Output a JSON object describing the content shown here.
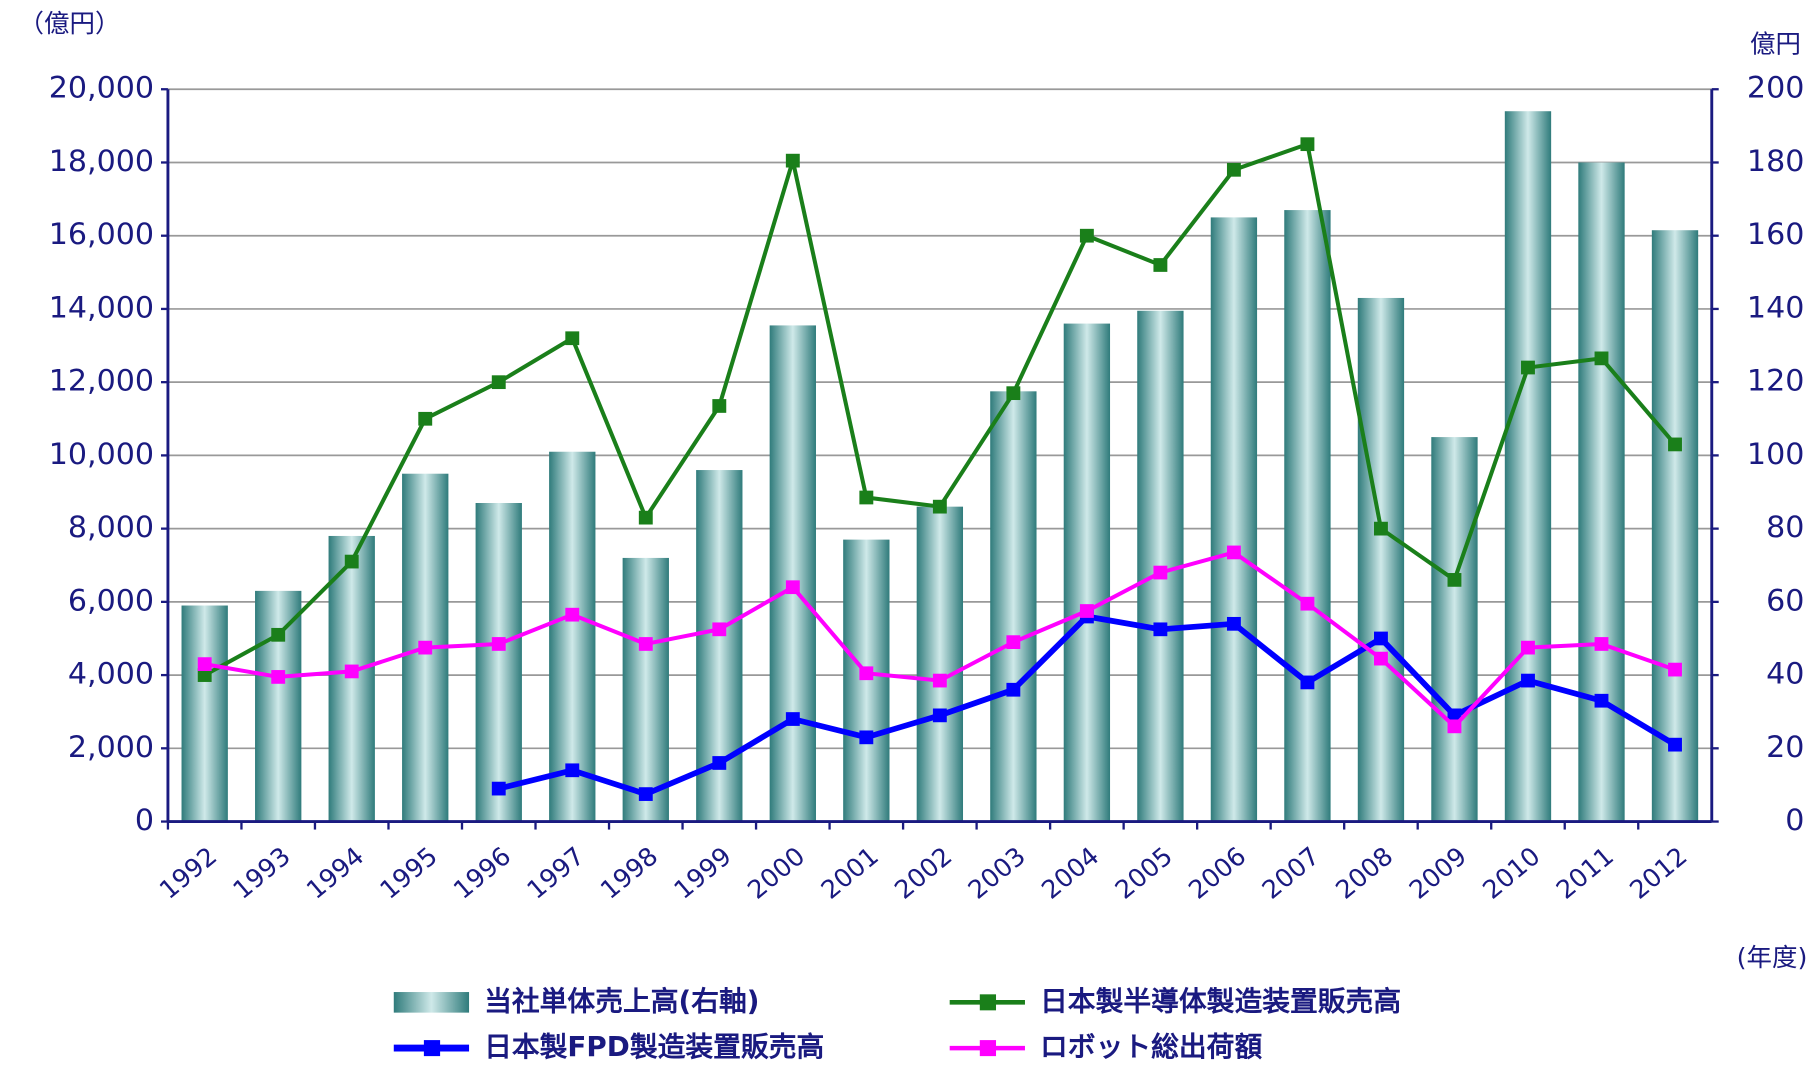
{
  "chart_data": {
    "type": "bar",
    "y_unit": "（億円）",
    "y2_unit": "億円",
    "x_unit": "(年度)",
    "categories": [
      "1992",
      "1993",
      "1994",
      "1995",
      "1996",
      "1997",
      "1998",
      "1999",
      "2000",
      "2001",
      "2002",
      "2003",
      "2004",
      "2005",
      "2006",
      "2007",
      "2008",
      "2009",
      "2010",
      "2011",
      "2012"
    ],
    "ylim": [
      0,
      20000
    ],
    "yticks": [
      {
        "value": 0,
        "label": "0"
      },
      {
        "value": 2000,
        "label": "2,000"
      },
      {
        "value": 4000,
        "label": "4,000"
      },
      {
        "value": 6000,
        "label": "6,000"
      },
      {
        "value": 8000,
        "label": "8,000"
      },
      {
        "value": 10000,
        "label": "10,000"
      },
      {
        "value": 12000,
        "label": "12,000"
      },
      {
        "value": 14000,
        "label": "14,000"
      },
      {
        "value": 16000,
        "label": "16,000"
      },
      {
        "value": 18000,
        "label": "18,000"
      },
      {
        "value": 20000,
        "label": "20,000"
      }
    ],
    "y2lim": [
      0,
      200
    ],
    "y2ticks": [
      0,
      20,
      40,
      60,
      80,
      100,
      120,
      140,
      160,
      180,
      200
    ],
    "grid": true,
    "series": [
      {
        "name": "当社単体売上高(右軸)",
        "type": "bar",
        "axis": "y2",
        "color": "#3a8a8a",
        "values": [
          59,
          63,
          78,
          95,
          87,
          101,
          72,
          96,
          135.5,
          77,
          86,
          117.5,
          136,
          139.5,
          165,
          167,
          143,
          105,
          194,
          180,
          161.5
        ]
      },
      {
        "name": "日本製半導体製造装置販売高",
        "type": "line",
        "color": "#1a7f1a",
        "values": [
          4000,
          5100,
          7100,
          11000,
          12000,
          13200,
          8300,
          11350,
          18050,
          8850,
          8600,
          11700,
          16000,
          15200,
          17800,
          18500,
          8000,
          6600,
          12400,
          12650,
          10300
        ]
      },
      {
        "name": "日本製FPD製造装置販売高",
        "type": "line",
        "color": "#0000ff",
        "values": [
          null,
          null,
          null,
          null,
          900,
          1400,
          750,
          1600,
          2800,
          2300,
          2900,
          3600,
          5600,
          5250,
          5400,
          3800,
          5000,
          2900,
          3850,
          3300,
          2100
        ]
      },
      {
        "name": "ロボット総出荷額",
        "type": "line",
        "color": "#ff00ff",
        "values": [
          4300,
          3950,
          4100,
          4750,
          4850,
          5650,
          4850,
          5250,
          6400,
          4050,
          3850,
          4900,
          5750,
          6800,
          7350,
          5950,
          4450,
          2600,
          4750,
          4850,
          4150
        ]
      }
    ]
  }
}
